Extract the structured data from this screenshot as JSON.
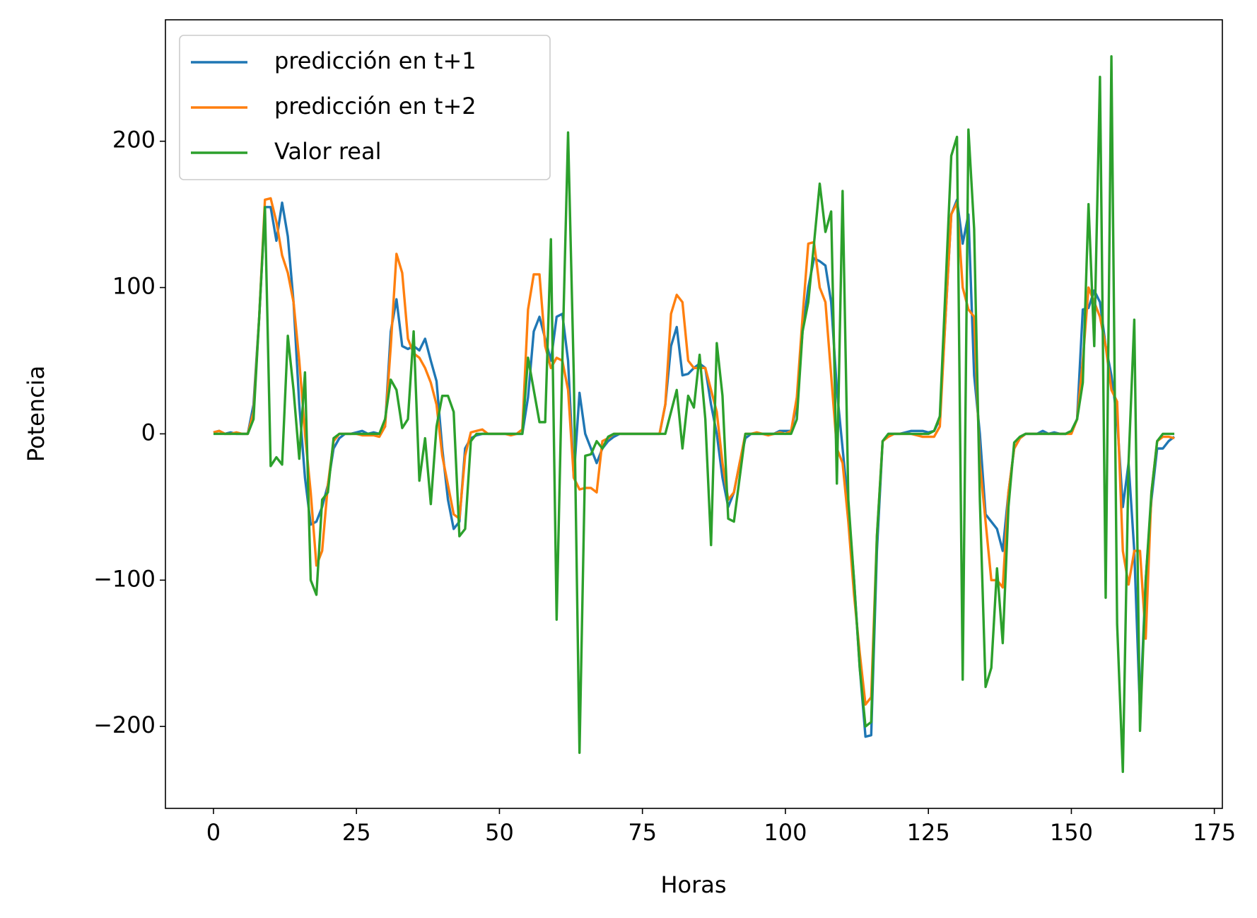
{
  "chart_data": {
    "type": "line",
    "xlabel": "Horas",
    "ylabel": "Potencia",
    "x": [
      0,
      1,
      2,
      3,
      4,
      5,
      6,
      7,
      8,
      9,
      10,
      11,
      12,
      13,
      14,
      15,
      16,
      17,
      18,
      19,
      20,
      21,
      22,
      23,
      24,
      25,
      26,
      27,
      28,
      29,
      30,
      31,
      32,
      33,
      34,
      35,
      36,
      37,
      38,
      39,
      40,
      41,
      42,
      43,
      44,
      45,
      46,
      47,
      48,
      49,
      50,
      51,
      52,
      53,
      54,
      55,
      56,
      57,
      58,
      59,
      60,
      61,
      62,
      63,
      64,
      65,
      66,
      67,
      68,
      69,
      70,
      71,
      72,
      73,
      74,
      75,
      76,
      77,
      78,
      79,
      80,
      81,
      82,
      83,
      84,
      85,
      86,
      87,
      88,
      89,
      90,
      91,
      92,
      93,
      94,
      95,
      96,
      97,
      98,
      99,
      100,
      101,
      102,
      103,
      104,
      105,
      106,
      107,
      108,
      109,
      110,
      111,
      112,
      113,
      114,
      115,
      116,
      117,
      118,
      119,
      120,
      121,
      122,
      123,
      124,
      125,
      126,
      127,
      128,
      129,
      130,
      131,
      132,
      133,
      134,
      135,
      136,
      137,
      138,
      139,
      140,
      141,
      142,
      143,
      144,
      145,
      146,
      147,
      148,
      149,
      150,
      151,
      152,
      153,
      154,
      155,
      156,
      157,
      158,
      159,
      160,
      161,
      162,
      163,
      164,
      165,
      166,
      167,
      168
    ],
    "series": [
      {
        "name": "predicción en t+1",
        "color": "#1f77b4",
        "values": [
          1,
          2,
          0,
          1,
          0,
          0,
          0,
          20,
          80,
          155,
          155,
          132,
          158,
          135,
          90,
          20,
          -30,
          -62,
          -60,
          -50,
          -35,
          -10,
          -3,
          0,
          0,
          1,
          2,
          0,
          1,
          0,
          5,
          70,
          92,
          60,
          58,
          60,
          57,
          65,
          50,
          36,
          -10,
          -45,
          -65,
          -60,
          -10,
          -3,
          -1,
          0,
          0,
          0,
          0,
          0,
          0,
          0,
          0,
          25,
          70,
          80,
          65,
          50,
          80,
          82,
          50,
          -30,
          28,
          0,
          -10,
          -20,
          -10,
          -5,
          -2,
          0,
          0,
          0,
          0,
          0,
          0,
          0,
          0,
          20,
          60,
          73,
          40,
          41,
          45,
          48,
          45,
          20,
          0,
          -30,
          -50,
          -40,
          -20,
          -3,
          0,
          0,
          0,
          0,
          0,
          2,
          2,
          2,
          20,
          70,
          100,
          120,
          118,
          115,
          90,
          30,
          -10,
          -50,
          -100,
          -160,
          -207,
          -206,
          -80,
          -5,
          0,
          0,
          0,
          1,
          2,
          2,
          2,
          1,
          2,
          10,
          80,
          150,
          160,
          130,
          150,
          40,
          0,
          -55,
          -60,
          -65,
          -80,
          -40,
          -10,
          -3,
          0,
          0,
          0,
          2,
          0,
          1,
          0,
          0,
          2,
          10,
          85,
          86,
          98,
          90,
          60,
          40,
          10,
          -50,
          -20,
          -80,
          -190,
          -100,
          -45,
          -10,
          -10,
          -5,
          -2
        ]
      },
      {
        "name": "predicción en t+2",
        "color": "#ff7f0e",
        "values": [
          1,
          2,
          0,
          0,
          1,
          0,
          0,
          15,
          80,
          160,
          161,
          145,
          122,
          110,
          90,
          50,
          0,
          -40,
          -90,
          -80,
          -35,
          -5,
          0,
          0,
          0,
          0,
          -1,
          -1,
          -1,
          -2,
          5,
          60,
          123,
          110,
          65,
          55,
          52,
          45,
          35,
          20,
          -15,
          -35,
          -55,
          -58,
          -15,
          1,
          2,
          3,
          0,
          0,
          0,
          0,
          -1,
          0,
          3,
          85,
          109,
          109,
          60,
          45,
          52,
          50,
          30,
          -30,
          -38,
          -37,
          -37,
          -40,
          -5,
          -3,
          0,
          0,
          0,
          0,
          0,
          0,
          0,
          0,
          0,
          20,
          82,
          95,
          90,
          50,
          45,
          45,
          45,
          30,
          15,
          -20,
          -45,
          -40,
          -20,
          0,
          0,
          1,
          0,
          -1,
          0,
          1,
          0,
          2,
          25,
          80,
          130,
          131,
          100,
          90,
          40,
          -10,
          -20,
          -60,
          -110,
          -150,
          -185,
          -180,
          -70,
          -5,
          -2,
          0,
          0,
          0,
          0,
          -1,
          -2,
          -2,
          -2,
          5,
          80,
          150,
          158,
          100,
          85,
          80,
          -20,
          -60,
          -100,
          -100,
          -105,
          -40,
          -10,
          -3,
          0,
          0,
          0,
          0,
          0,
          0,
          0,
          0,
          0,
          10,
          50,
          100,
          90,
          80,
          60,
          30,
          22,
          -80,
          -103,
          -80,
          -80,
          -140,
          -40,
          -5,
          -2,
          -2,
          -3
        ]
      },
      {
        "name": "Valor real",
        "color": "#2ca02c",
        "values": [
          0,
          0,
          0,
          0,
          0,
          0,
          0,
          10,
          80,
          155,
          -22,
          -16,
          -21,
          67,
          30,
          -17,
          42,
          -100,
          -110,
          -45,
          -40,
          -3,
          0,
          0,
          0,
          0,
          0,
          0,
          0,
          0,
          10,
          37,
          30,
          4,
          10,
          70,
          -32,
          -3,
          -48,
          5,
          26,
          26,
          15,
          -70,
          -65,
          -5,
          0,
          0,
          0,
          0,
          0,
          0,
          0,
          0,
          0,
          52,
          30,
          8,
          8,
          133,
          -127,
          50,
          206,
          40,
          -218,
          -15,
          -14,
          -5,
          -10,
          -2,
          0,
          0,
          0,
          0,
          0,
          0,
          0,
          0,
          0,
          0,
          15,
          30,
          -10,
          26,
          18,
          54,
          10,
          -76,
          62,
          26,
          -58,
          -60,
          -30,
          0,
          0,
          0,
          0,
          0,
          0,
          0,
          0,
          0,
          10,
          70,
          90,
          130,
          171,
          138,
          152,
          -34,
          166,
          -45,
          -100,
          -160,
          -200,
          -197,
          -70,
          -5,
          0,
          0,
          0,
          0,
          0,
          0,
          0,
          0,
          2,
          12,
          100,
          190,
          203,
          -168,
          208,
          140,
          -45,
          -173,
          -160,
          -92,
          -143,
          -50,
          -6,
          -2,
          0,
          0,
          0,
          0,
          0,
          0,
          0,
          0,
          2,
          10,
          35,
          157,
          60,
          244,
          -112,
          258,
          -130,
          -231,
          -20,
          78,
          -203,
          -100,
          -40,
          -5,
          0,
          0,
          0
        ]
      }
    ],
    "xlim": [
      -8.4,
      176.4
    ],
    "ylim": [
      -256,
      283
    ],
    "xticks": [
      0,
      25,
      50,
      75,
      100,
      125,
      150,
      175
    ],
    "yticks": [
      {
        "value": -200,
        "label": "−200"
      },
      {
        "value": -100,
        "label": "−100"
      },
      0,
      100,
      200
    ],
    "legend": "upper left"
  }
}
